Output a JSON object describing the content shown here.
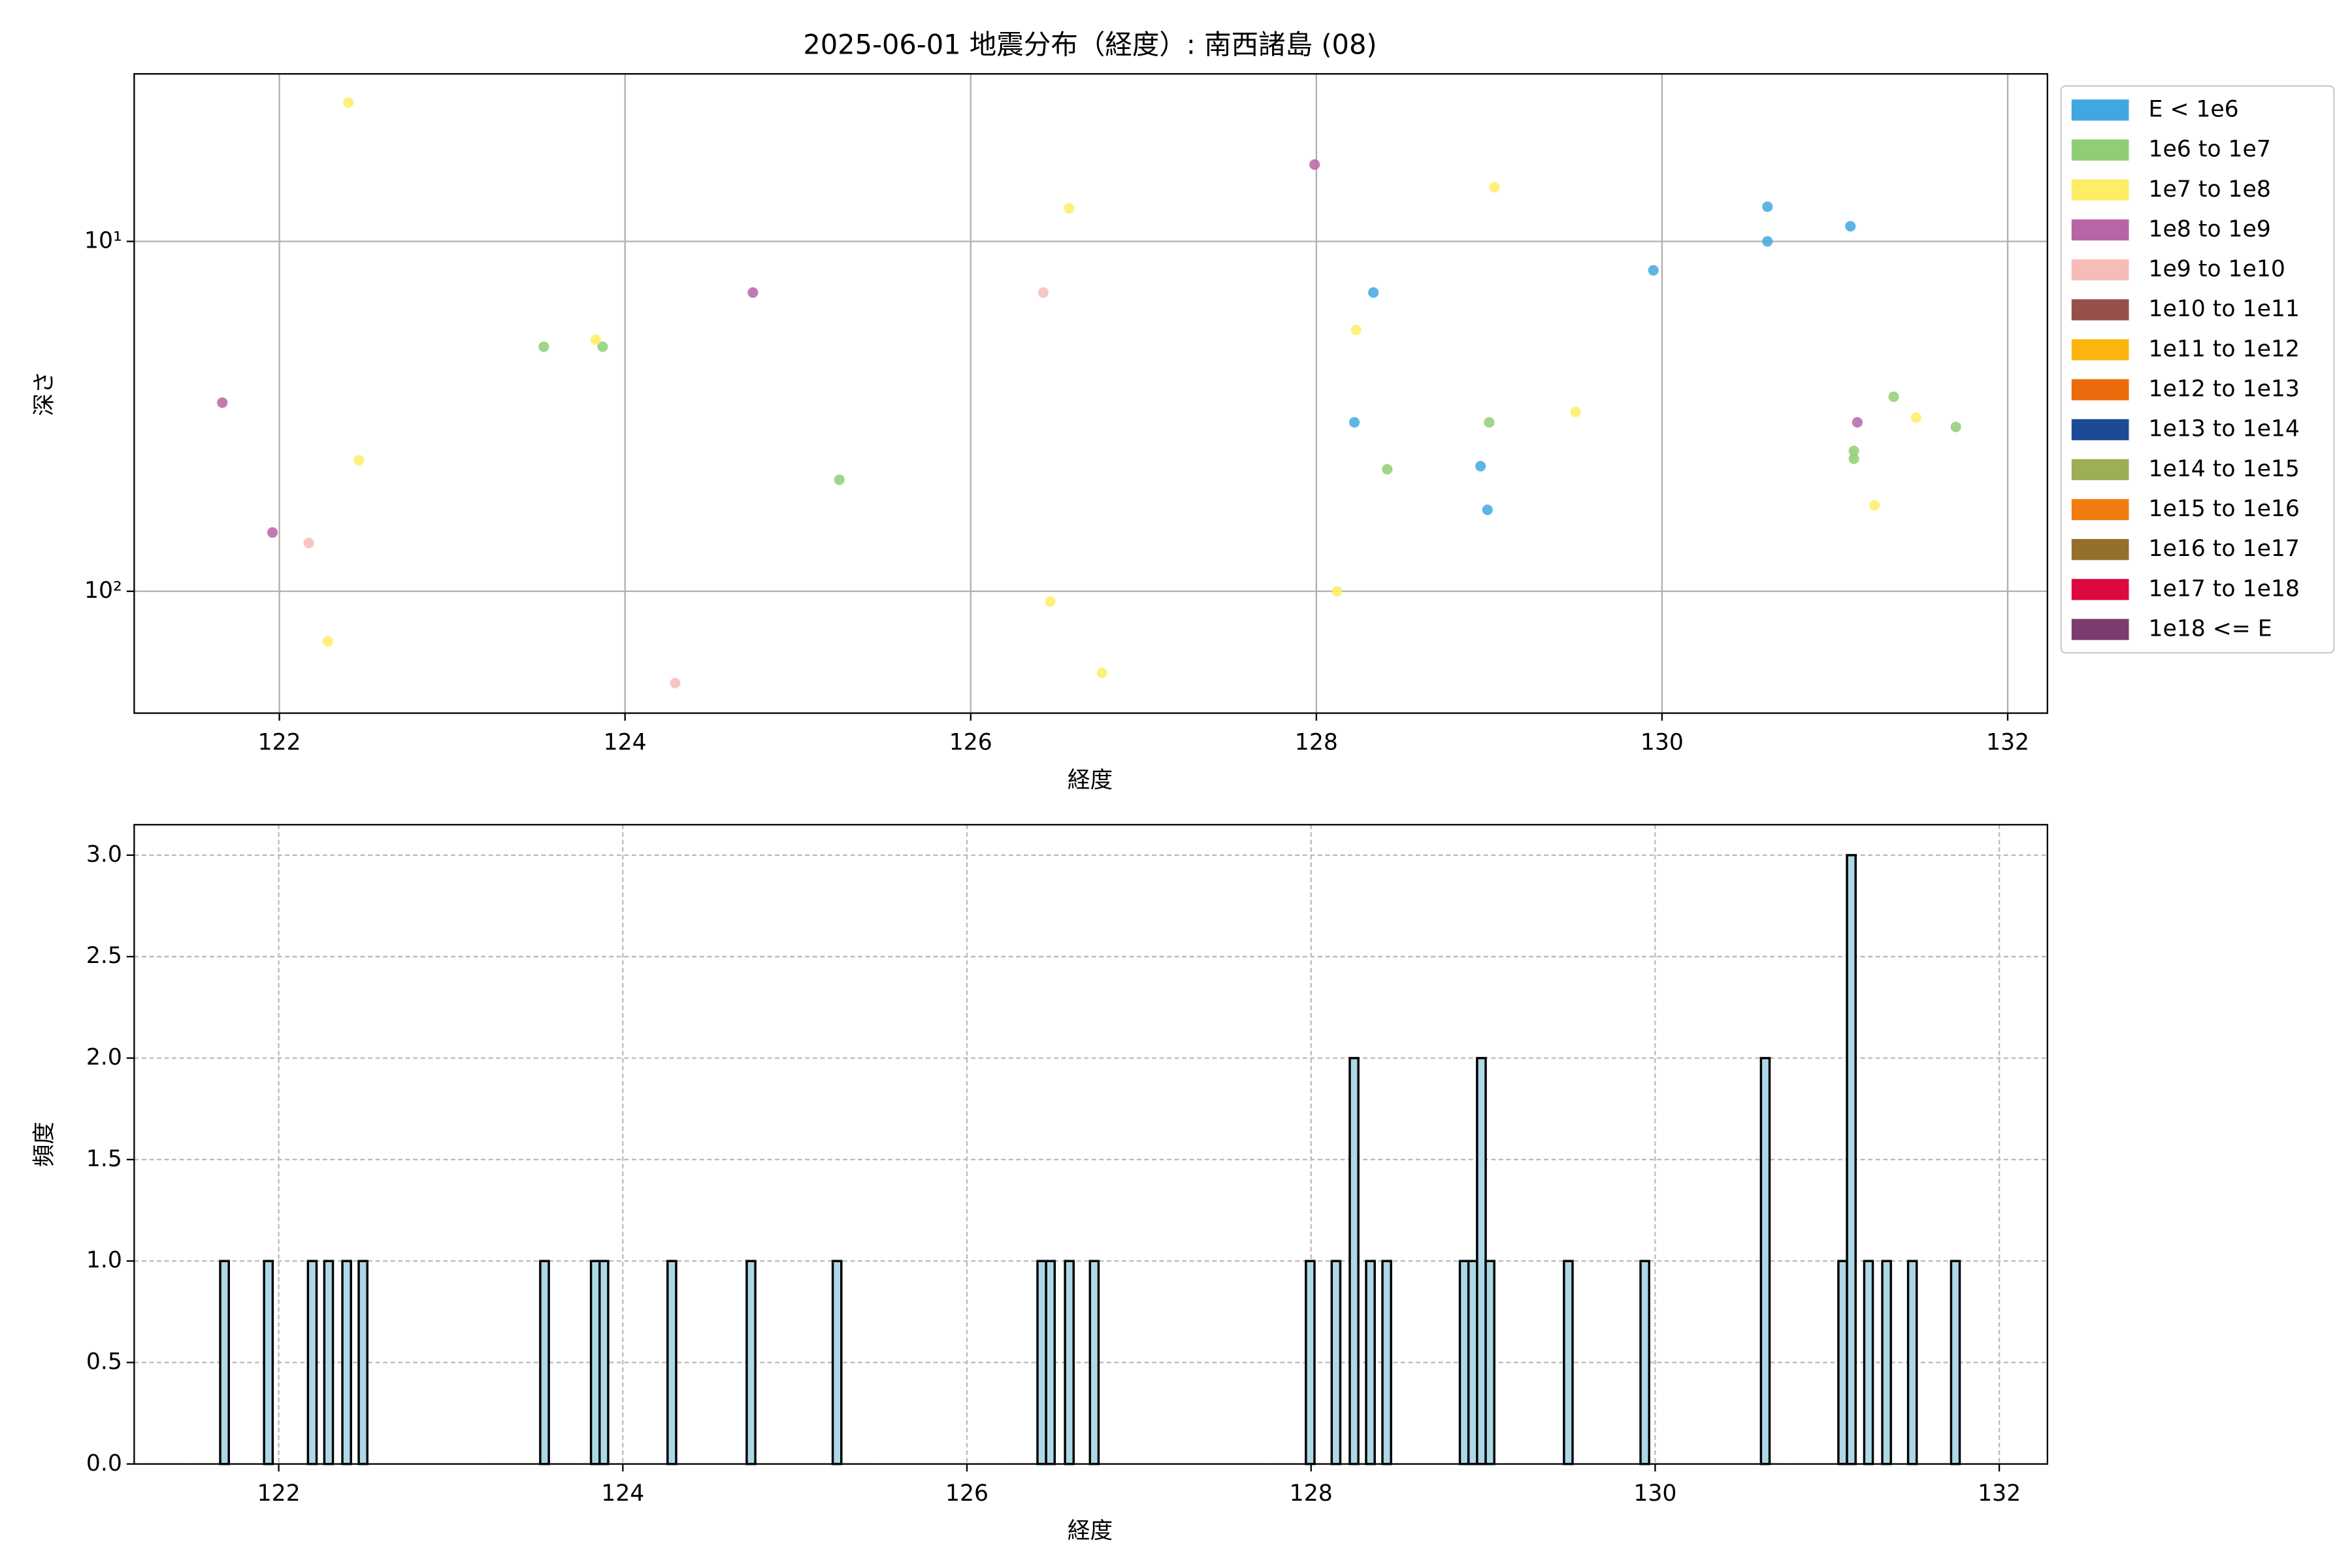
{
  "chart_data": [
    {
      "type": "scatter",
      "title": "2025-06-01 地震分布（経度）: 南西諸島 (08)",
      "x_label": "経度",
      "y_label": "深さ",
      "xlim": [
        121.16,
        132.23
      ],
      "xticks": [
        122,
        124,
        126,
        128,
        130,
        132
      ],
      "yscale": "log",
      "ylim": [
        223,
        3.32
      ],
      "yticks": [
        {
          "value": 10,
          "label": "10¹"
        },
        {
          "value": 100,
          "label": "10²"
        }
      ],
      "grid": true,
      "grid_linestyle": "solid",
      "legend": "outside right",
      "series": [
        {
          "name": "E < 1e6",
          "color": "#41a7e0",
          "x": [
            130.61,
            130.61,
            131.09,
            129.95,
            128.33,
            128.22,
            128.95,
            128.99
          ],
          "values": [
            7.96,
            10,
            9.05,
            12.1,
            14.0,
            32.9,
            43.9,
            58.5
          ]
        },
        {
          "name": "1e6 to 1e7",
          "color": "#8fce75",
          "x": [
            123.53,
            123.87,
            125.24,
            128.41,
            129.0,
            131.11,
            131.11,
            131.34,
            131.7
          ],
          "values": [
            20.0,
            20.0,
            48.0,
            44.8,
            32.9,
            39.7,
            41.8,
            27.8,
            33.9
          ]
        },
        {
          "name": "1e7 to 1e8",
          "color": "#fdee65",
          "x": [
            122.4,
            122.46,
            122.28,
            123.83,
            126.57,
            126.46,
            126.76,
            129.03,
            128.23,
            129.5,
            128.12,
            131.23,
            131.47
          ],
          "values": [
            4.01,
            42.2,
            139,
            19.1,
            8.04,
            107,
            171,
            7.0,
            17.9,
            30.7,
            100,
            56.8,
            31.9
          ]
        },
        {
          "name": "1e8 to 1e9",
          "color": "#b865a6",
          "x": [
            121.67,
            121.96,
            124.74,
            127.99,
            131.13
          ],
          "values": [
            28.9,
            67.9,
            14.0,
            6.03,
            32.9
          ]
        },
        {
          "name": "1e9 to 1e10",
          "color": "#f6bcb7",
          "x": [
            122.17,
            124.29,
            126.42
          ],
          "values": [
            72.8,
            183,
            14.0
          ]
        },
        {
          "name": "1e10 to 1e11",
          "color": "#955149",
          "x": [],
          "values": []
        },
        {
          "name": "1e11 to 1e12",
          "color": "#fbb50e",
          "x": [],
          "values": []
        },
        {
          "name": "1e12 to 1e13",
          "color": "#ec6a0c",
          "x": [],
          "values": []
        },
        {
          "name": "1e13 to 1e14",
          "color": "#1b4b96",
          "x": [],
          "values": []
        },
        {
          "name": "1e14 to 1e15",
          "color": "#9caf55",
          "x": [],
          "values": []
        },
        {
          "name": "1e15 to 1e16",
          "color": "#f07c10",
          "x": [],
          "values": []
        },
        {
          "name": "1e16 to 1e17",
          "color": "#95702c",
          "x": [],
          "values": []
        },
        {
          "name": "1e17 to 1e18",
          "color": "#dc0941",
          "x": [],
          "values": []
        },
        {
          "name": "1e18 <= E",
          "color": "#7a3c6e",
          "x": [],
          "values": []
        }
      ]
    },
    {
      "type": "histogram",
      "x_label": "経度",
      "y_label": "頻度",
      "xlim": [
        121.16,
        132.28
      ],
      "xticks": [
        122,
        124,
        126,
        128,
        130,
        132
      ],
      "ylim": [
        0,
        3.15
      ],
      "yticks": [
        {
          "value": 0,
          "label": "0.0"
        },
        0.5,
        {
          "value": 1,
          "label": "1.0"
        },
        1.5,
        {
          "value": 2,
          "label": "2.0"
        },
        2.5,
        {
          "value": 3,
          "label": "3.0"
        }
      ],
      "grid": true,
      "grid_linestyle": "dashed",
      "color": "#add8e6",
      "edgecolor": "#000000",
      "bins": [
        121.66,
        121.71,
        121.915,
        121.965,
        122.17,
        122.22,
        122.265,
        122.315,
        122.37,
        122.42,
        122.465,
        122.515,
        123.52,
        123.57,
        123.815,
        123.865,
        123.915,
        124.26,
        124.31,
        124.72,
        124.77,
        125.22,
        125.27,
        126.41,
        126.46,
        126.51,
        126.57,
        126.62,
        126.715,
        126.765,
        127.97,
        128.02,
        128.12,
        128.17,
        128.225,
        128.275,
        128.32,
        128.37,
        128.415,
        128.465,
        128.865,
        128.915,
        128.965,
        129.015,
        129.065,
        129.47,
        129.52,
        129.915,
        129.965,
        130.615,
        130.665,
        131.065,
        131.115,
        131.165,
        131.215,
        131.265,
        131.32,
        131.37,
        131.47,
        131.52,
        131.72,
        131.77
      ],
      "values": [
        1,
        0,
        1,
        0,
        1,
        0,
        1,
        0,
        1,
        0,
        1,
        0,
        1,
        0,
        1,
        1,
        0,
        1,
        0,
        1,
        0,
        1,
        0,
        1,
        1,
        0,
        1,
        0,
        1,
        0,
        1,
        0,
        1,
        0,
        2,
        0,
        1,
        0,
        1,
        0,
        1,
        1,
        2,
        1,
        0,
        1,
        0,
        1,
        0,
        2,
        0,
        1,
        3,
        0,
        1,
        0,
        1,
        0,
        1,
        0,
        1
      ]
    }
  ]
}
